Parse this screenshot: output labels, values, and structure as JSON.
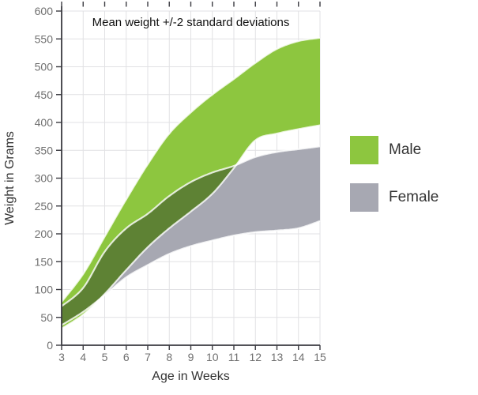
{
  "chart_data": {
    "type": "area",
    "subtype": "band-arearange",
    "title": "Mean weight +/-2 standard deviations",
    "xlabel": "Age in Weeks",
    "ylabel": "Weight in Grams",
    "x": [
      3,
      4,
      5,
      6,
      7,
      8,
      9,
      10,
      11,
      12,
      13,
      14,
      15
    ],
    "xlim": [
      3,
      15
    ],
    "ylim": [
      0,
      600
    ],
    "xticks": [
      3,
      4,
      5,
      6,
      7,
      8,
      9,
      10,
      11,
      12,
      13,
      14,
      15
    ],
    "yticks": [
      0,
      50,
      100,
      150,
      200,
      250,
      300,
      350,
      400,
      450,
      500,
      550,
      600
    ],
    "grid": true,
    "legend_position": "right",
    "series": [
      {
        "name": "Male",
        "color": "#8dc63f",
        "band_low": [
          30,
          55,
          92,
          135,
          176,
          210,
          240,
          272,
          318,
          368,
          380,
          388,
          395
        ],
        "band_high": [
          78,
          128,
          195,
          262,
          325,
          380,
          418,
          450,
          478,
          507,
          532,
          546,
          552
        ]
      },
      {
        "name": "Female",
        "color": "#a7a8b2",
        "band_low": [
          36,
          60,
          90,
          122,
          144,
          164,
          178,
          188,
          197,
          203,
          206,
          210,
          223
        ],
        "band_high": [
          70,
          103,
          168,
          210,
          236,
          268,
          293,
          310,
          322,
          338,
          347,
          352,
          357
        ]
      }
    ],
    "overlap_color": "#5e8234",
    "band_edge_color": "rgba(255,255,255,0.8)",
    "grid_color": "#e1e1e4",
    "axis_color": "#3a3a40",
    "tick_label_color": "#707070",
    "text_color": "#333333"
  }
}
